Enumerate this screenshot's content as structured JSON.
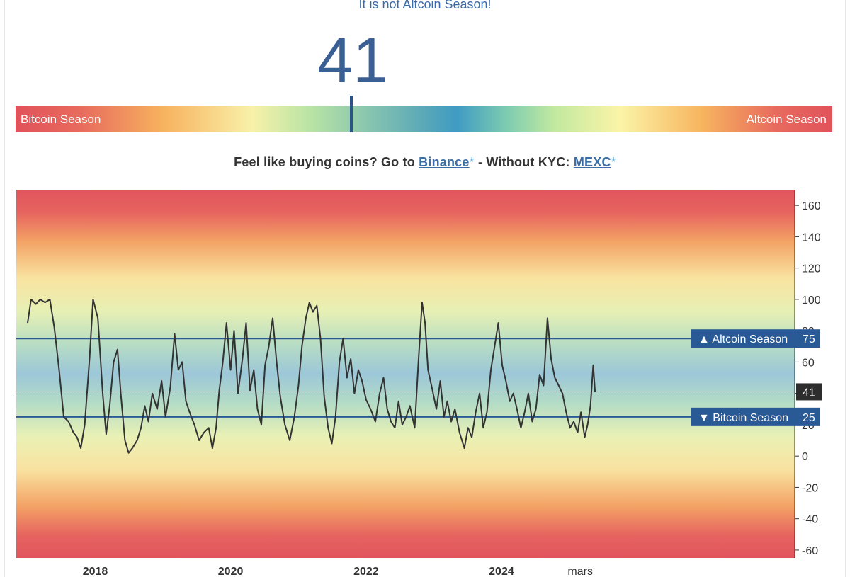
{
  "header": {
    "headline": "It is not Altcoin Season!",
    "index_value": "41"
  },
  "gauge": {
    "left_label": "Bitcoin Season",
    "right_label": "Altcoin Season",
    "value_percent": 41
  },
  "promo": {
    "prefix": "Feel like buying coins? Go to ",
    "link1": "Binance",
    "star": "*",
    "middle": " - Without KYC: ",
    "link2": "MEXC"
  },
  "chart_data": {
    "type": "line",
    "title": "",
    "xlabel": "",
    "ylabel": "",
    "ylim": [
      -65,
      170
    ],
    "x_range": [
      "2016-11-01",
      "2028-05-01"
    ],
    "y_ticks": [
      160,
      140,
      120,
      100,
      80,
      60,
      40,
      20,
      0,
      -20,
      -40,
      -60
    ],
    "x_ticks": [
      {
        "label": "2018",
        "date": "2018-01-01",
        "bold": true
      },
      {
        "label": "2020",
        "date": "2020-01-01",
        "bold": true
      },
      {
        "label": "2022",
        "date": "2022-01-01",
        "bold": true
      },
      {
        "label": "2024",
        "date": "2024-01-01",
        "bold": true
      },
      {
        "label": "mars",
        "date": "2025-03-01",
        "bold": false
      }
    ],
    "background": "red at extremes, yellow/green toward middle, blue around 50",
    "thresholds": [
      {
        "name": "Altcoin Season",
        "value": 75,
        "label": "▲ Altcoin Season",
        "color": "#2a5a96"
      },
      {
        "name": "Bitcoin Season",
        "value": 25,
        "label": "▼ Bitcoin Season",
        "color": "#2a5a96"
      }
    ],
    "current": {
      "value": 41
    },
    "series": [
      {
        "color": "#333333",
        "points": [
          [
            "2017-01-01",
            85
          ],
          [
            "2017-01-20",
            100
          ],
          [
            "2017-02-15",
            97
          ],
          [
            "2017-03-10",
            100
          ],
          [
            "2017-04-05",
            98
          ],
          [
            "2017-05-01",
            100
          ],
          [
            "2017-05-25",
            82
          ],
          [
            "2017-06-20",
            55
          ],
          [
            "2017-07-15",
            25
          ],
          [
            "2017-08-10",
            22
          ],
          [
            "2017-09-05",
            15
          ],
          [
            "2017-09-25",
            12
          ],
          [
            "2017-10-15",
            5
          ],
          [
            "2017-11-05",
            20
          ],
          [
            "2017-12-01",
            62
          ],
          [
            "2017-12-20",
            100
          ],
          [
            "2018-01-15",
            88
          ],
          [
            "2018-02-10",
            40
          ],
          [
            "2018-03-01",
            14
          ],
          [
            "2018-03-20",
            32
          ],
          [
            "2018-04-10",
            60
          ],
          [
            "2018-05-01",
            68
          ],
          [
            "2018-05-20",
            38
          ],
          [
            "2018-06-10",
            10
          ],
          [
            "2018-06-30",
            2
          ],
          [
            "2018-07-20",
            5
          ],
          [
            "2018-08-15",
            10
          ],
          [
            "2018-09-05",
            18
          ],
          [
            "2018-09-25",
            32
          ],
          [
            "2018-10-15",
            22
          ],
          [
            "2018-11-05",
            40
          ],
          [
            "2018-12-01",
            30
          ],
          [
            "2018-12-25",
            48
          ],
          [
            "2019-01-15",
            25
          ],
          [
            "2019-02-10",
            44
          ],
          [
            "2019-03-05",
            78
          ],
          [
            "2019-03-25",
            55
          ],
          [
            "2019-04-15",
            60
          ],
          [
            "2019-05-05",
            35
          ],
          [
            "2019-05-25",
            28
          ],
          [
            "2019-06-20",
            20
          ],
          [
            "2019-07-15",
            10
          ],
          [
            "2019-08-10",
            15
          ],
          [
            "2019-09-05",
            18
          ],
          [
            "2019-09-25",
            5
          ],
          [
            "2019-10-15",
            18
          ],
          [
            "2019-11-01",
            42
          ],
          [
            "2019-11-20",
            60
          ],
          [
            "2019-12-10",
            85
          ],
          [
            "2020-01-01",
            55
          ],
          [
            "2020-01-20",
            80
          ],
          [
            "2020-02-10",
            40
          ],
          [
            "2020-03-05",
            62
          ],
          [
            "2020-03-25",
            85
          ],
          [
            "2020-04-15",
            42
          ],
          [
            "2020-05-05",
            55
          ],
          [
            "2020-05-25",
            30
          ],
          [
            "2020-06-15",
            20
          ],
          [
            "2020-07-05",
            58
          ],
          [
            "2020-07-25",
            70
          ],
          [
            "2020-08-15",
            88
          ],
          [
            "2020-09-05",
            60
          ],
          [
            "2020-09-25",
            38
          ],
          [
            "2020-10-20",
            20
          ],
          [
            "2020-11-15",
            10
          ],
          [
            "2020-12-10",
            25
          ],
          [
            "2021-01-01",
            45
          ],
          [
            "2021-01-20",
            70
          ],
          [
            "2021-02-10",
            88
          ],
          [
            "2021-03-01",
            98
          ],
          [
            "2021-03-20",
            92
          ],
          [
            "2021-04-10",
            96
          ],
          [
            "2021-04-30",
            75
          ],
          [
            "2021-05-20",
            38
          ],
          [
            "2021-06-10",
            18
          ],
          [
            "2021-06-30",
            8
          ],
          [
            "2021-07-20",
            25
          ],
          [
            "2021-08-10",
            60
          ],
          [
            "2021-08-30",
            75
          ],
          [
            "2021-09-20",
            50
          ],
          [
            "2021-10-10",
            62
          ],
          [
            "2021-10-30",
            40
          ],
          [
            "2021-11-20",
            55
          ],
          [
            "2021-12-10",
            48
          ],
          [
            "2022-01-01",
            36
          ],
          [
            "2022-01-25",
            30
          ],
          [
            "2022-02-20",
            22
          ],
          [
            "2022-03-15",
            40
          ],
          [
            "2022-04-05",
            50
          ],
          [
            "2022-04-25",
            30
          ],
          [
            "2022-05-15",
            22
          ],
          [
            "2022-06-05",
            18
          ],
          [
            "2022-06-25",
            35
          ],
          [
            "2022-07-15",
            20
          ],
          [
            "2022-08-05",
            25
          ],
          [
            "2022-08-25",
            32
          ],
          [
            "2022-09-20",
            18
          ],
          [
            "2022-10-10",
            60
          ],
          [
            "2022-10-30",
            98
          ],
          [
            "2022-11-15",
            85
          ],
          [
            "2022-12-01",
            55
          ],
          [
            "2022-12-25",
            42
          ],
          [
            "2023-01-15",
            30
          ],
          [
            "2023-02-05",
            48
          ],
          [
            "2023-02-25",
            25
          ],
          [
            "2023-03-15",
            35
          ],
          [
            "2023-04-05",
            22
          ],
          [
            "2023-04-25",
            30
          ],
          [
            "2023-05-20",
            15
          ],
          [
            "2023-06-15",
            5
          ],
          [
            "2023-07-05",
            18
          ],
          [
            "2023-07-25",
            12
          ],
          [
            "2023-08-15",
            28
          ],
          [
            "2023-09-05",
            40
          ],
          [
            "2023-09-25",
            18
          ],
          [
            "2023-10-15",
            28
          ],
          [
            "2023-11-05",
            55
          ],
          [
            "2023-11-25",
            70
          ],
          [
            "2023-12-15",
            85
          ],
          [
            "2024-01-05",
            58
          ],
          [
            "2024-01-25",
            48
          ],
          [
            "2024-02-15",
            35
          ],
          [
            "2024-03-05",
            40
          ],
          [
            "2024-03-25",
            30
          ],
          [
            "2024-04-15",
            18
          ],
          [
            "2024-05-05",
            28
          ],
          [
            "2024-05-25",
            40
          ],
          [
            "2024-06-15",
            22
          ],
          [
            "2024-07-05",
            30
          ],
          [
            "2024-07-25",
            52
          ],
          [
            "2024-08-15",
            45
          ],
          [
            "2024-09-05",
            88
          ],
          [
            "2024-09-25",
            62
          ],
          [
            "2024-10-15",
            50
          ],
          [
            "2024-11-05",
            45
          ],
          [
            "2024-11-25",
            40
          ],
          [
            "2024-12-15",
            28
          ],
          [
            "2025-01-05",
            18
          ],
          [
            "2025-01-25",
            22
          ],
          [
            "2025-02-15",
            15
          ],
          [
            "2025-03-05",
            28
          ],
          [
            "2025-03-25",
            12
          ],
          [
            "2025-04-10",
            20
          ],
          [
            "2025-04-25",
            32
          ],
          [
            "2025-05-10",
            58
          ],
          [
            "2025-05-20",
            41
          ]
        ]
      }
    ]
  }
}
